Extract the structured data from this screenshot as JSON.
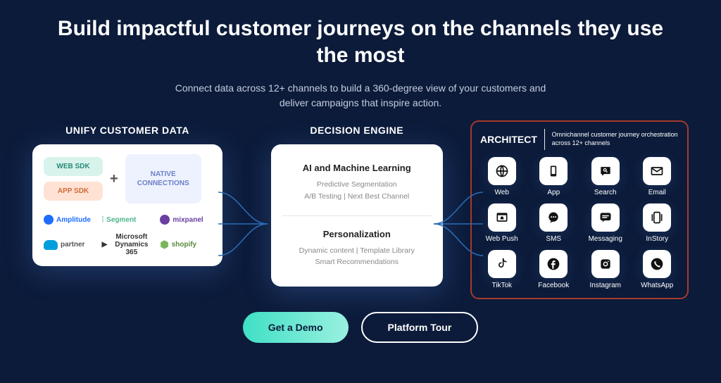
{
  "hero": {
    "title": "Build impactful customer journeys on the channels they use the most",
    "subtitle": "Connect data across 12+ channels to build a 360-degree view of your customers and deliver campaigns that inspire action."
  },
  "unify": {
    "title": "UNIFY CUSTOMER DATA",
    "web_sdk": "WEB SDK",
    "web_sdk_bg": "#d7f3ec",
    "web_sdk_color": "#2a8a78",
    "app_sdk": "APP SDK",
    "app_sdk_bg": "#ffe2d3",
    "app_sdk_color": "#d06a3a",
    "native": "NATIVE CONNECTIONS",
    "native_bg": "#eef2ff",
    "native_color": "#6b7fc7",
    "logos": [
      {
        "text": "Amplitude",
        "color": "#1e6dff"
      },
      {
        "text": "Segment",
        "color": "#4fb58b",
        "prefix": "⫶"
      },
      {
        "text": "mixpanel",
        "color": "#6b3fa0"
      },
      {
        "text": "partner",
        "color": "#009ddc",
        "cloud": true
      },
      {
        "text": "Microsoft Dynamics 365",
        "color": "#333",
        "ms": true
      },
      {
        "text": "shopify",
        "color": "#5a8a3a",
        "shop": true
      }
    ]
  },
  "decision": {
    "title": "DECISION ENGINE",
    "sec1_title": "AI and Machine Learning",
    "sec1_body": "Predictive Segmentation\nA/B Testing | Next Best Channel",
    "sec2_title": "Personalization",
    "sec2_body": "Dynamic content | Template Library\nSmart Recommendations"
  },
  "architect": {
    "title": "ARCHITECT",
    "subtitle": "Omnichannel customer journey orchestration across 12+ channels",
    "border_color": "#a63a2c",
    "channels": [
      {
        "label": "Web",
        "icon": "globe"
      },
      {
        "label": "App",
        "icon": "phone"
      },
      {
        "label": "Search",
        "icon": "search-bubble"
      },
      {
        "label": "Email",
        "icon": "mail"
      },
      {
        "label": "Web Push",
        "icon": "browser-bell"
      },
      {
        "label": "SMS",
        "icon": "dots-bubble"
      },
      {
        "label": "Messaging",
        "icon": "lines-bubble"
      },
      {
        "label": "InStory",
        "icon": "story"
      },
      {
        "label": "TikTok",
        "icon": "tiktok"
      },
      {
        "label": "Facebook",
        "icon": "facebook"
      },
      {
        "label": "Instagram",
        "icon": "instagram"
      },
      {
        "label": "WhatsApp",
        "icon": "whatsapp"
      }
    ]
  },
  "cta": {
    "primary": "Get a Demo",
    "secondary": "Platform Tour"
  },
  "styling": {
    "background": "#0c1b3a",
    "card_bg": "#ffffff",
    "connector_color": "#2a6db8",
    "primary_btn_gradient": [
      "#3fe0c5",
      "#9af0e0"
    ]
  }
}
